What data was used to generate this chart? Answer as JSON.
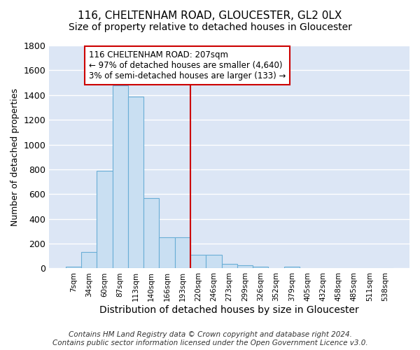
{
  "title": "116, CHELTENHAM ROAD, GLOUCESTER, GL2 0LX",
  "subtitle": "Size of property relative to detached houses in Gloucester",
  "xlabel": "Distribution of detached houses by size in Gloucester",
  "ylabel": "Number of detached properties",
  "footer_line1": "Contains HM Land Registry data © Crown copyright and database right 2024.",
  "footer_line2": "Contains public sector information licensed under the Open Government Licence v3.0.",
  "categories": [
    "7sqm",
    "34sqm",
    "60sqm",
    "87sqm",
    "113sqm",
    "140sqm",
    "166sqm",
    "193sqm",
    "220sqm",
    "246sqm",
    "273sqm",
    "299sqm",
    "326sqm",
    "352sqm",
    "379sqm",
    "405sqm",
    "432sqm",
    "458sqm",
    "485sqm",
    "511sqm",
    "538sqm"
  ],
  "values": [
    15,
    130,
    790,
    1475,
    1390,
    570,
    250,
    250,
    110,
    110,
    35,
    25,
    15,
    0,
    15,
    0,
    0,
    0,
    0,
    0,
    0
  ],
  "bar_color": "#c9dff2",
  "bar_edge_color": "#6aaed6",
  "reference_line_color": "#cc0000",
  "annotation_text_line1": "116 CHELTENHAM ROAD: 207sqm",
  "annotation_text_line2": "← 97% of detached houses are smaller (4,640)",
  "annotation_text_line3": "3% of semi-detached houses are larger (133) →",
  "annotation_box_color": "#ffffff",
  "annotation_box_edge_color": "#cc0000",
  "ylim": [
    0,
    1800
  ],
  "yticks": [
    0,
    200,
    400,
    600,
    800,
    1000,
    1200,
    1400,
    1600,
    1800
  ],
  "plot_bg_color": "#dce6f5",
  "fig_bg_color": "#ffffff",
  "grid_color": "#ffffff",
  "title_fontsize": 11,
  "subtitle_fontsize": 10,
  "ylabel_fontsize": 9,
  "xlabel_fontsize": 10,
  "footer_fontsize": 7.5,
  "ref_line_x": 7.5
}
